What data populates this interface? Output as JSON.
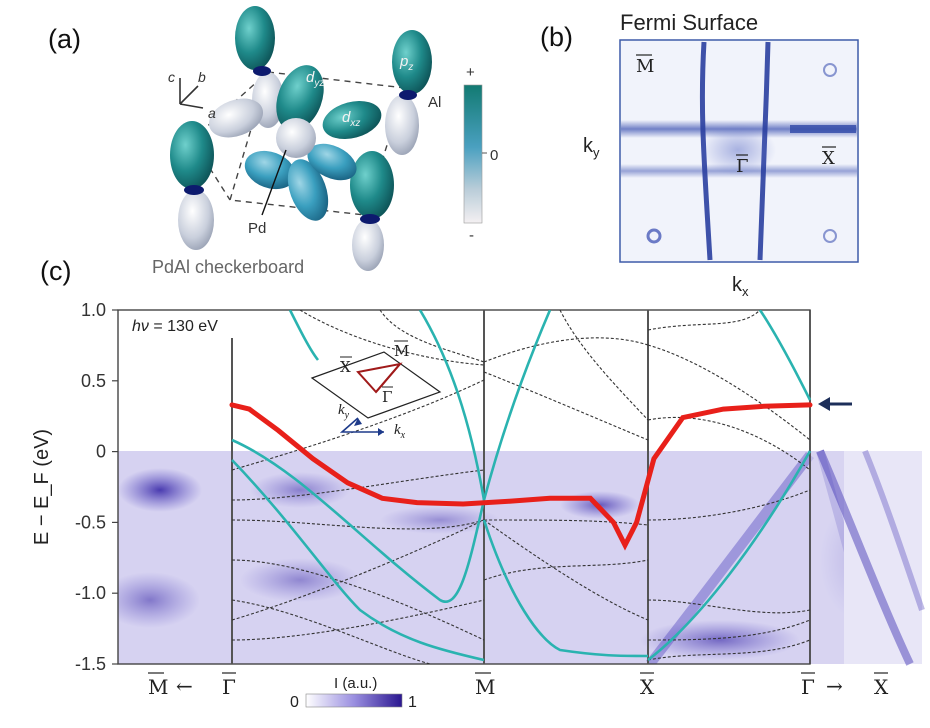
{
  "panel_a": {
    "label": "(a)",
    "axis_c": "c",
    "axis_b": "b",
    "axis_a": "a",
    "orbital_dyz": "d",
    "orbital_dyz_sub": "yz",
    "orbital_dxz": "d",
    "orbital_dxz_sub": "xz",
    "orbital_pz": "p",
    "orbital_pz_sub": "z",
    "atom_al": "Al",
    "atom_pd": "Pd",
    "caption": "PdAl checkerboard",
    "colorbar_plus": "+",
    "colorbar_zero": "0",
    "colorbar_minus": "-",
    "colors": {
      "orbital_teal": "#1f8a8a",
      "orbital_white": "#d9dde6",
      "ring": "#0d1a6e"
    }
  },
  "panel_b": {
    "label": "(b)",
    "title": "Fermi Surface",
    "ky_label": "k",
    "ky_sub": "y",
    "kx_label": "k",
    "kx_sub": "x",
    "point_M": "M",
    "point_Gamma": "Γ",
    "point_X": "X",
    "colors": {
      "intensity": "#3a4fb0",
      "frame": "#3d5aa8"
    }
  },
  "panel_c": {
    "label": "(c)",
    "photon_energy_prefix": "hν",
    "photon_energy_value": "= 130 eV",
    "ylabel": "E − E_F (eV)",
    "inset_M": "M",
    "inset_X": "X",
    "inset_Gamma": "Γ",
    "inset_ky": "k",
    "inset_ky_sub": "y",
    "inset_kx": "k",
    "inset_kx_sub": "x",
    "colorbar_label": "I (a.u.)",
    "colorbar_min": "0",
    "colorbar_max": "1",
    "x_path_labels": [
      "M",
      "←",
      "Γ",
      "M",
      "X",
      "Γ",
      "→",
      "X"
    ],
    "colors": {
      "surface_band": "#e8201a",
      "teal_band": "#2ab3b0",
      "dft_band": "#333333",
      "arpes": "#5a4fc4",
      "arrow": "#1d2f5a"
    }
  },
  "chart_data": {
    "type": "line",
    "ylabel": "E − E_F (eV)",
    "ylim": [
      -1.5,
      1.0
    ],
    "y_ticks": [
      "1.0",
      "0.5",
      "0",
      "-0.5",
      "-1.0",
      "-1.5"
    ],
    "x_high_symmetry": [
      "M",
      "Γ",
      "M",
      "X",
      "Γ",
      "X"
    ],
    "series": [
      {
        "x": [
          0,
          0.03,
          0.08,
          0.14,
          0.2,
          0.26,
          0.32,
          0.4,
          0.48,
          0.55,
          0.62,
          0.66,
          0.68,
          0.7,
          0.73,
          0.78,
          0.85,
          0.92,
          1.0
        ],
        "values": [
          0.33,
          0.3,
          0.15,
          -0.05,
          -0.22,
          -0.33,
          -0.36,
          -0.37,
          -0.35,
          -0.33,
          -0.33,
          -0.5,
          -0.66,
          -0.5,
          -0.05,
          0.24,
          0.3,
          0.32,
          0.33
        ]
      }
    ]
  }
}
